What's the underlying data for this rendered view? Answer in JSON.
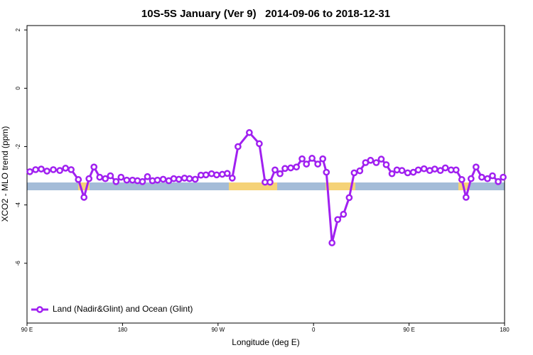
{
  "chart_data": {
    "type": "line",
    "title": "10S-5S January (Ver 9)   2014-09-06 to 2018-12-31",
    "x_label": "Longitude (deg E)",
    "y_label": "XCO2 - MLO trend (ppm)",
    "xlim": [
      90,
      540
    ],
    "ylim": [
      -8.05,
      2.15
    ],
    "xticks": [
      {
        "value": 90,
        "label": "90 E"
      },
      {
        "value": 180,
        "label": "180"
      },
      {
        "value": 270,
        "label": "90 W"
      },
      {
        "value": 360,
        "label": "0"
      },
      {
        "value": 450,
        "label": "90 E"
      },
      {
        "value": 540,
        "label": "180"
      }
    ],
    "yticks": [
      2,
      0,
      -2,
      -4,
      -6
    ],
    "legend": "bottom-left",
    "series": [
      {
        "name": "Land (Nadir&Glint) and Ocean (Glint)",
        "color": "#a020f0",
        "x": [
          92.7,
          98.1,
          103.4,
          108.8,
          114.8,
          120.9,
          126.3,
          131.6,
          138.4,
          143.7,
          148.4,
          153.1,
          158.5,
          163.8,
          168.6,
          173.9,
          178.6,
          184.0,
          189.4,
          194.1,
          198.8,
          203.5,
          208.2,
          212.9,
          218.3,
          223.6,
          228.3,
          233.1,
          238.4,
          243.1,
          248.5,
          253.9,
          258.6,
          263.9,
          268.7,
          274.0,
          278.7,
          283.4,
          288.8,
          299.5,
          308.9,
          314.3,
          319.0,
          323.7,
          328.4,
          333.1,
          338.5,
          343.9,
          349.2,
          353.3,
          358.6,
          364.0,
          368.7,
          372.1,
          377.4,
          382.8,
          388.2,
          393.6,
          398.3,
          403.6,
          409.0,
          413.7,
          419.1,
          423.8,
          428.5,
          433.9,
          438.6,
          443.3,
          448.7,
          454.0,
          458.7,
          464.1,
          469.5,
          474.2,
          479.5,
          484.2,
          489.6,
          494.3,
          499.7,
          503.7,
          508.4,
          513.1,
          518.5,
          523.9,
          528.6,
          534.0,
          538.7
        ],
        "values": [
          -2.86,
          -2.79,
          -2.77,
          -2.84,
          -2.79,
          -2.82,
          -2.74,
          -2.79,
          -3.13,
          -3.74,
          -3.1,
          -2.7,
          -3.05,
          -3.1,
          -3.0,
          -3.2,
          -3.05,
          -3.15,
          -3.15,
          -3.17,
          -3.2,
          -3.03,
          -3.17,
          -3.15,
          -3.12,
          -3.17,
          -3.1,
          -3.12,
          -3.08,
          -3.1,
          -3.12,
          -2.98,
          -2.97,
          -2.93,
          -2.97,
          -2.95,
          -2.92,
          -3.08,
          -2.0,
          -1.52,
          -1.9,
          -3.22,
          -3.22,
          -2.8,
          -2.93,
          -2.75,
          -2.73,
          -2.7,
          -2.42,
          -2.6,
          -2.4,
          -2.6,
          -2.42,
          -2.88,
          -5.3,
          -4.5,
          -4.32,
          -3.75,
          -2.9,
          -2.83,
          -2.55,
          -2.47,
          -2.55,
          -2.43,
          -2.62,
          -2.93,
          -2.8,
          -2.82,
          -2.9,
          -2.88,
          -2.8,
          -2.76,
          -2.82,
          -2.77,
          -2.82,
          -2.73,
          -2.8,
          -2.8,
          -3.13,
          -3.74,
          -3.1,
          -2.7,
          -3.05,
          -3.1,
          -3.0,
          -3.2,
          -3.05
        ]
      }
    ]
  }
}
